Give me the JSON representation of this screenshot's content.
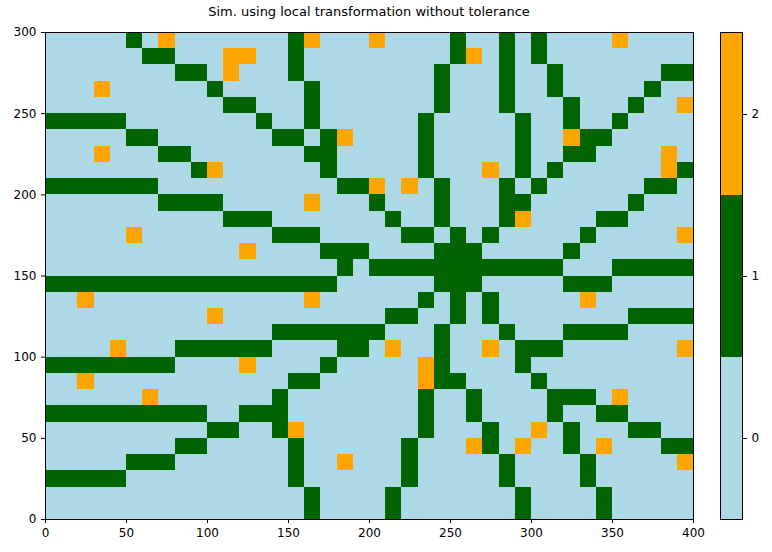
{
  "chart_data": {
    "type": "heatmap",
    "title": "Sim. using local transformation without tolerance",
    "xlim": [
      0,
      400
    ],
    "ylim": [
      0,
      300
    ],
    "xticks": [
      0,
      50,
      100,
      150,
      200,
      250,
      300,
      350,
      400
    ],
    "yticks": [
      0,
      50,
      100,
      150,
      200,
      250,
      300
    ],
    "colors": [
      "#add8e6",
      "#006400",
      "#ffa500"
    ],
    "colorbar": {
      "ticks": [
        0,
        1,
        2
      ]
    },
    "cells": [
      [
        0,
        0,
        0,
        0,
        0,
        1,
        0,
        2,
        0,
        0,
        0,
        0,
        0,
        0,
        0,
        1,
        2,
        0,
        0,
        0,
        2,
        0,
        0,
        0,
        0,
        1,
        0,
        0,
        1,
        0,
        1,
        0,
        0,
        0,
        0,
        2,
        0,
        0,
        0,
        0
      ],
      [
        0,
        0,
        0,
        0,
        0,
        0,
        1,
        1,
        0,
        0,
        0,
        2,
        2,
        0,
        0,
        1,
        0,
        0,
        0,
        0,
        0,
        0,
        0,
        0,
        0,
        1,
        2,
        0,
        1,
        0,
        1,
        0,
        0,
        0,
        0,
        0,
        0,
        0,
        0,
        0
      ],
      [
        0,
        0,
        0,
        0,
        0,
        0,
        0,
        0,
        1,
        1,
        0,
        2,
        0,
        0,
        0,
        1,
        0,
        0,
        0,
        0,
        0,
        0,
        0,
        0,
        1,
        0,
        0,
        0,
        1,
        0,
        0,
        1,
        0,
        0,
        0,
        0,
        0,
        0,
        1,
        1
      ],
      [
        0,
        0,
        0,
        2,
        0,
        0,
        0,
        0,
        0,
        0,
        1,
        0,
        0,
        0,
        0,
        0,
        1,
        0,
        0,
        0,
        0,
        0,
        0,
        0,
        1,
        0,
        0,
        0,
        1,
        0,
        0,
        1,
        0,
        0,
        0,
        0,
        0,
        1,
        0,
        0
      ],
      [
        0,
        0,
        0,
        0,
        0,
        0,
        0,
        0,
        0,
        0,
        0,
        1,
        1,
        0,
        0,
        0,
        1,
        0,
        0,
        0,
        0,
        0,
        0,
        0,
        1,
        0,
        0,
        0,
        1,
        0,
        0,
        0,
        1,
        0,
        0,
        0,
        1,
        0,
        0,
        2
      ],
      [
        1,
        1,
        1,
        1,
        1,
        0,
        0,
        0,
        0,
        0,
        0,
        0,
        0,
        1,
        0,
        0,
        1,
        0,
        0,
        0,
        0,
        0,
        0,
        1,
        0,
        0,
        0,
        0,
        0,
        1,
        0,
        0,
        1,
        0,
        0,
        1,
        0,
        0,
        0,
        0
      ],
      [
        0,
        0,
        0,
        0,
        0,
        1,
        1,
        0,
        0,
        0,
        0,
        0,
        0,
        0,
        1,
        1,
        0,
        1,
        2,
        0,
        0,
        0,
        0,
        1,
        0,
        0,
        0,
        0,
        0,
        1,
        0,
        0,
        2,
        1,
        1,
        0,
        0,
        0,
        0,
        0
      ],
      [
        0,
        0,
        0,
        2,
        0,
        0,
        0,
        1,
        1,
        0,
        0,
        0,
        0,
        0,
        0,
        0,
        1,
        1,
        0,
        0,
        0,
        0,
        0,
        1,
        0,
        0,
        0,
        0,
        0,
        1,
        0,
        0,
        1,
        1,
        0,
        0,
        0,
        0,
        2,
        0
      ],
      [
        0,
        0,
        0,
        0,
        0,
        0,
        0,
        0,
        0,
        1,
        2,
        0,
        0,
        0,
        0,
        0,
        0,
        1,
        0,
        0,
        0,
        0,
        0,
        1,
        0,
        0,
        0,
        2,
        0,
        1,
        0,
        1,
        0,
        0,
        0,
        0,
        0,
        0,
        2,
        1
      ],
      [
        1,
        1,
        1,
        1,
        1,
        1,
        1,
        0,
        0,
        0,
        0,
        0,
        0,
        0,
        0,
        0,
        0,
        0,
        1,
        1,
        2,
        0,
        2,
        0,
        1,
        0,
        0,
        0,
        1,
        0,
        1,
        0,
        0,
        0,
        0,
        0,
        0,
        1,
        1,
        0
      ],
      [
        0,
        0,
        0,
        0,
        0,
        0,
        0,
        1,
        1,
        1,
        1,
        0,
        0,
        0,
        0,
        0,
        2,
        0,
        0,
        0,
        1,
        0,
        0,
        0,
        1,
        0,
        0,
        0,
        1,
        1,
        0,
        0,
        0,
        0,
        0,
        0,
        1,
        0,
        0,
        0
      ],
      [
        0,
        0,
        0,
        0,
        0,
        0,
        0,
        0,
        0,
        0,
        0,
        1,
        1,
        1,
        0,
        0,
        0,
        0,
        0,
        0,
        0,
        1,
        0,
        0,
        1,
        0,
        0,
        0,
        1,
        2,
        0,
        0,
        0,
        0,
        1,
        1,
        0,
        0,
        0,
        0
      ],
      [
        0,
        0,
        0,
        0,
        0,
        2,
        0,
        0,
        0,
        0,
        0,
        0,
        0,
        0,
        1,
        1,
        1,
        0,
        0,
        0,
        0,
        0,
        1,
        1,
        0,
        1,
        0,
        1,
        0,
        0,
        0,
        0,
        0,
        1,
        0,
        0,
        0,
        0,
        0,
        2
      ],
      [
        0,
        0,
        0,
        0,
        0,
        0,
        0,
        0,
        0,
        0,
        0,
        0,
        2,
        0,
        0,
        0,
        0,
        1,
        1,
        1,
        0,
        0,
        0,
        0,
        1,
        1,
        1,
        0,
        0,
        0,
        0,
        0,
        1,
        0,
        0,
        0,
        0,
        0,
        0,
        0
      ],
      [
        0,
        0,
        0,
        0,
        0,
        0,
        0,
        0,
        0,
        0,
        0,
        0,
        0,
        0,
        0,
        0,
        0,
        0,
        1,
        0,
        1,
        1,
        1,
        1,
        1,
        1,
        1,
        1,
        1,
        1,
        1,
        1,
        0,
        0,
        0,
        1,
        1,
        1,
        1,
        1
      ],
      [
        1,
        1,
        1,
        1,
        1,
        1,
        1,
        1,
        1,
        1,
        1,
        1,
        1,
        1,
        1,
        1,
        1,
        1,
        0,
        0,
        0,
        0,
        0,
        0,
        1,
        1,
        1,
        0,
        0,
        0,
        0,
        0,
        1,
        1,
        1,
        0,
        0,
        0,
        0,
        0
      ],
      [
        0,
        0,
        2,
        0,
        0,
        0,
        0,
        0,
        0,
        0,
        0,
        0,
        0,
        0,
        0,
        0,
        2,
        0,
        0,
        0,
        0,
        0,
        0,
        1,
        0,
        1,
        0,
        1,
        0,
        0,
        0,
        0,
        0,
        2,
        0,
        0,
        0,
        0,
        0,
        0
      ],
      [
        0,
        0,
        0,
        0,
        0,
        0,
        0,
        0,
        0,
        0,
        2,
        0,
        0,
        0,
        0,
        0,
        0,
        0,
        0,
        0,
        0,
        1,
        1,
        0,
        0,
        1,
        0,
        1,
        0,
        0,
        0,
        0,
        0,
        0,
        0,
        0,
        1,
        1,
        1,
        1
      ],
      [
        0,
        0,
        0,
        0,
        0,
        0,
        0,
        0,
        0,
        0,
        0,
        0,
        0,
        0,
        1,
        1,
        1,
        1,
        1,
        1,
        1,
        0,
        0,
        0,
        1,
        0,
        0,
        0,
        1,
        0,
        0,
        0,
        1,
        1,
        1,
        1,
        0,
        0,
        0,
        0
      ],
      [
        0,
        0,
        0,
        0,
        2,
        0,
        0,
        0,
        1,
        1,
        1,
        1,
        1,
        1,
        0,
        0,
        0,
        0,
        1,
        1,
        0,
        2,
        0,
        0,
        1,
        0,
        0,
        2,
        0,
        1,
        1,
        1,
        0,
        0,
        0,
        0,
        0,
        0,
        0,
        2
      ],
      [
        1,
        1,
        1,
        1,
        1,
        1,
        1,
        1,
        0,
        0,
        0,
        0,
        2,
        0,
        0,
        0,
        0,
        1,
        0,
        0,
        0,
        0,
        0,
        2,
        1,
        0,
        0,
        0,
        0,
        1,
        0,
        0,
        0,
        0,
        0,
        0,
        0,
        0,
        0,
        0
      ],
      [
        0,
        0,
        2,
        0,
        0,
        0,
        0,
        0,
        0,
        0,
        0,
        0,
        0,
        0,
        0,
        1,
        1,
        0,
        0,
        0,
        0,
        0,
        0,
        2,
        1,
        1,
        0,
        0,
        0,
        0,
        1,
        0,
        0,
        0,
        0,
        0,
        0,
        0,
        0,
        0
      ],
      [
        0,
        0,
        0,
        0,
        0,
        0,
        2,
        0,
        0,
        0,
        0,
        0,
        0,
        0,
        1,
        0,
        0,
        0,
        0,
        0,
        0,
        0,
        0,
        1,
        0,
        0,
        1,
        0,
        0,
        0,
        0,
        1,
        1,
        1,
        0,
        2,
        0,
        0,
        0,
        0
      ],
      [
        1,
        1,
        1,
        1,
        1,
        1,
        1,
        1,
        1,
        1,
        0,
        0,
        1,
        1,
        1,
        0,
        0,
        0,
        0,
        0,
        0,
        0,
        0,
        1,
        0,
        0,
        1,
        0,
        0,
        0,
        0,
        1,
        0,
        0,
        1,
        1,
        0,
        0,
        0,
        0
      ],
      [
        0,
        0,
        0,
        0,
        0,
        0,
        0,
        0,
        0,
        0,
        1,
        1,
        0,
        0,
        1,
        2,
        0,
        0,
        0,
        0,
        0,
        0,
        0,
        1,
        0,
        0,
        0,
        1,
        0,
        0,
        2,
        0,
        1,
        0,
        0,
        0,
        1,
        1,
        0,
        0
      ],
      [
        0,
        0,
        0,
        0,
        0,
        0,
        0,
        0,
        1,
        1,
        0,
        0,
        0,
        0,
        0,
        1,
        0,
        0,
        0,
        0,
        0,
        0,
        1,
        0,
        0,
        0,
        2,
        1,
        0,
        2,
        0,
        0,
        1,
        0,
        2,
        0,
        0,
        0,
        1,
        1
      ],
      [
        0,
        0,
        0,
        0,
        0,
        1,
        1,
        1,
        0,
        0,
        0,
        0,
        0,
        0,
        0,
        1,
        0,
        0,
        2,
        0,
        0,
        0,
        1,
        0,
        0,
        0,
        0,
        0,
        1,
        0,
        0,
        0,
        0,
        1,
        0,
        0,
        0,
        0,
        0,
        2
      ],
      [
        1,
        1,
        1,
        1,
        1,
        0,
        0,
        0,
        0,
        0,
        0,
        0,
        0,
        0,
        0,
        1,
        0,
        0,
        0,
        0,
        0,
        0,
        1,
        0,
        0,
        0,
        0,
        0,
        1,
        0,
        0,
        0,
        0,
        1,
        0,
        0,
        0,
        0,
        0,
        0
      ],
      [
        0,
        0,
        0,
        0,
        0,
        0,
        0,
        0,
        0,
        0,
        0,
        0,
        0,
        0,
        0,
        0,
        1,
        0,
        0,
        0,
        0,
        1,
        0,
        0,
        0,
        0,
        0,
        0,
        0,
        1,
        0,
        0,
        0,
        0,
        1,
        0,
        0,
        0,
        0,
        0
      ],
      [
        0,
        0,
        0,
        0,
        0,
        0,
        0,
        0,
        0,
        0,
        0,
        0,
        0,
        0,
        0,
        0,
        1,
        0,
        0,
        0,
        0,
        1,
        0,
        0,
        0,
        0,
        0,
        0,
        0,
        1,
        0,
        0,
        0,
        0,
        1,
        0,
        0,
        0,
        0,
        0
      ]
    ]
  }
}
